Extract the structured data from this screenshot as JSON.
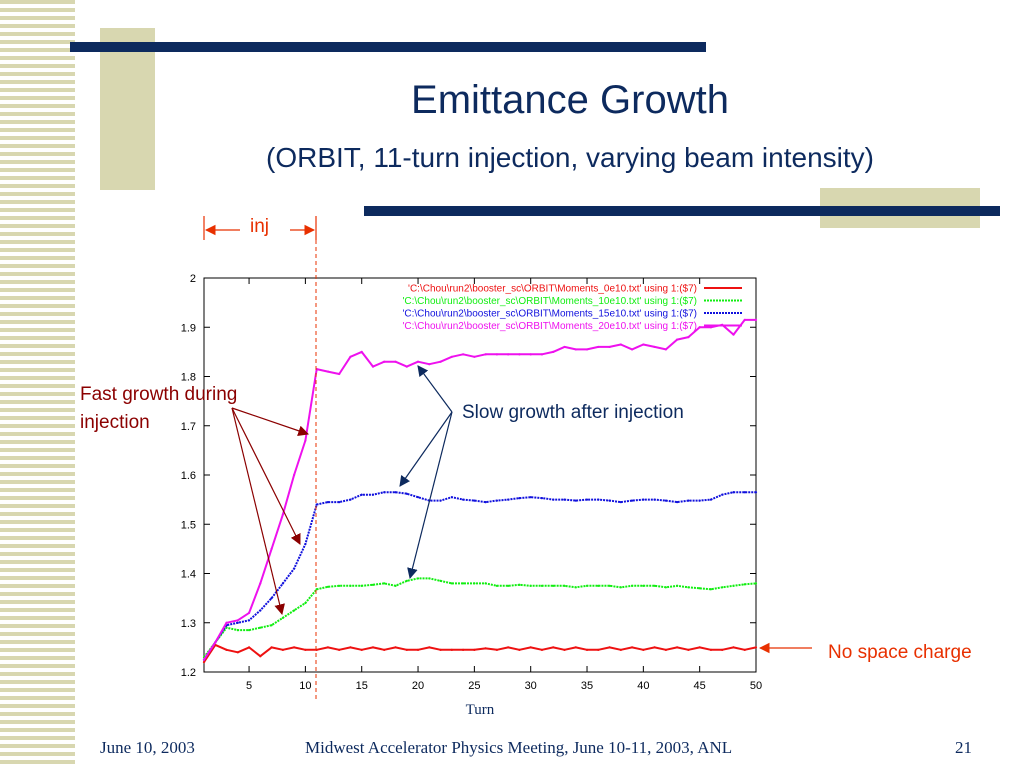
{
  "slide": {
    "title": "Emittance Growth",
    "subtitle": "(ORBIT, 11-turn injection, varying beam intensity)",
    "footer_date": "June 10, 2003",
    "footer_meeting": "Midwest Accelerator Physics Meeting, June 10-11, 2003, ANL",
    "page_number": "21",
    "colors": {
      "title": "#0d2a5e",
      "bar": "#0d2a5e",
      "accent_block": "#d8d7b0",
      "annotation_red": "#8b0000",
      "annotation_orange": "#e83000"
    }
  },
  "annotations": {
    "inj": "inj",
    "fast_growth_line1": "Fast growth during",
    "fast_growth_line2": "injection",
    "slow_growth": "Slow growth after injection",
    "no_space_charge": "No space charge"
  },
  "chart_data": {
    "type": "line",
    "xlabel": "Turn",
    "ylabel": "",
    "xlim": [
      1,
      50
    ],
    "ylim": [
      1.2,
      2.0
    ],
    "xticks": [
      "5",
      "10",
      "15",
      "20",
      "25",
      "30",
      "35",
      "40",
      "45",
      "50"
    ],
    "yticks": [
      "1.2",
      "1.3",
      "1.4",
      "1.5",
      "1.6",
      "1.7",
      "1.8",
      "1.9",
      "2"
    ],
    "legend_position": "top-right",
    "series": [
      {
        "name": "'C:\\Chou\\run2\\booster_sc\\ORBIT\\Moments_0e10.txt' using 1:($7)",
        "color": "#ee1111",
        "x": [
          1,
          2,
          3,
          4,
          5,
          6,
          7,
          8,
          9,
          10,
          11,
          12,
          13,
          14,
          15,
          16,
          17,
          18,
          19,
          20,
          21,
          22,
          23,
          24,
          25,
          26,
          27,
          28,
          29,
          30,
          31,
          32,
          33,
          34,
          35,
          36,
          37,
          38,
          39,
          40,
          41,
          42,
          43,
          44,
          45,
          46,
          47,
          48,
          49,
          50
        ],
        "y": [
          1.22,
          1.255,
          1.245,
          1.24,
          1.25,
          1.232,
          1.25,
          1.245,
          1.25,
          1.245,
          1.245,
          1.25,
          1.245,
          1.25,
          1.245,
          1.25,
          1.245,
          1.25,
          1.245,
          1.245,
          1.25,
          1.245,
          1.245,
          1.245,
          1.245,
          1.248,
          1.245,
          1.25,
          1.245,
          1.25,
          1.245,
          1.25,
          1.245,
          1.25,
          1.245,
          1.245,
          1.25,
          1.245,
          1.25,
          1.245,
          1.25,
          1.245,
          1.25,
          1.245,
          1.25,
          1.245,
          1.245,
          1.25,
          1.245,
          1.25
        ]
      },
      {
        "name": "'C:\\Chou\\run2\\booster_sc\\ORBIT\\Moments_10e10.txt' using 1:($7)",
        "color": "#11ee11",
        "x": [
          1,
          2,
          3,
          4,
          5,
          6,
          7,
          8,
          9,
          10,
          11,
          12,
          13,
          14,
          15,
          16,
          17,
          18,
          19,
          20,
          21,
          22,
          23,
          24,
          25,
          26,
          27,
          28,
          29,
          30,
          31,
          32,
          33,
          34,
          35,
          36,
          37,
          38,
          39,
          40,
          41,
          42,
          43,
          44,
          45,
          46,
          47,
          48,
          49,
          50
        ],
        "y": [
          1.23,
          1.26,
          1.29,
          1.285,
          1.285,
          1.29,
          1.295,
          1.31,
          1.325,
          1.34,
          1.368,
          1.373,
          1.375,
          1.375,
          1.375,
          1.377,
          1.38,
          1.375,
          1.385,
          1.39,
          1.39,
          1.385,
          1.38,
          1.38,
          1.38,
          1.38,
          1.375,
          1.375,
          1.377,
          1.375,
          1.375,
          1.375,
          1.375,
          1.372,
          1.375,
          1.375,
          1.375,
          1.372,
          1.375,
          1.375,
          1.375,
          1.372,
          1.375,
          1.372,
          1.37,
          1.368,
          1.372,
          1.375,
          1.378,
          1.38
        ]
      },
      {
        "name": "'C:\\Chou\\run2\\booster_sc\\ORBIT\\Moments_15e10.txt' using 1:($7)",
        "color": "#1111dd",
        "x": [
          1,
          2,
          3,
          4,
          5,
          6,
          7,
          8,
          9,
          10,
          11,
          12,
          13,
          14,
          15,
          16,
          17,
          18,
          19,
          20,
          21,
          22,
          23,
          24,
          25,
          26,
          27,
          28,
          29,
          30,
          31,
          32,
          33,
          34,
          35,
          36,
          37,
          38,
          39,
          40,
          41,
          42,
          43,
          44,
          45,
          46,
          47,
          48,
          49,
          50
        ],
        "y": [
          1.225,
          1.26,
          1.295,
          1.3,
          1.305,
          1.325,
          1.35,
          1.38,
          1.41,
          1.46,
          1.54,
          1.545,
          1.545,
          1.55,
          1.56,
          1.56,
          1.565,
          1.565,
          1.562,
          1.555,
          1.548,
          1.548,
          1.555,
          1.55,
          1.548,
          1.545,
          1.548,
          1.55,
          1.553,
          1.555,
          1.553,
          1.55,
          1.55,
          1.548,
          1.55,
          1.55,
          1.548,
          1.545,
          1.548,
          1.55,
          1.55,
          1.548,
          1.545,
          1.548,
          1.548,
          1.55,
          1.56,
          1.565,
          1.565,
          1.565
        ]
      },
      {
        "name": "'C:\\Chou\\run2\\booster_sc\\ORBIT\\Moments_20e10.txt' using 1:($7)",
        "color": "#ee11ee",
        "x": [
          1,
          2,
          3,
          4,
          5,
          6,
          7,
          8,
          9,
          10,
          11,
          12,
          13,
          14,
          15,
          16,
          17,
          18,
          19,
          20,
          21,
          22,
          23,
          24,
          25,
          26,
          27,
          28,
          29,
          30,
          31,
          32,
          33,
          34,
          35,
          36,
          37,
          38,
          39,
          40,
          41,
          42,
          43,
          44,
          45,
          46,
          47,
          48,
          49,
          50
        ],
        "y": [
          1.225,
          1.26,
          1.3,
          1.305,
          1.32,
          1.38,
          1.45,
          1.52,
          1.6,
          1.67,
          1.815,
          1.81,
          1.805,
          1.84,
          1.85,
          1.82,
          1.83,
          1.83,
          1.82,
          1.83,
          1.825,
          1.83,
          1.84,
          1.845,
          1.84,
          1.845,
          1.845,
          1.845,
          1.845,
          1.845,
          1.845,
          1.85,
          1.86,
          1.855,
          1.855,
          1.86,
          1.86,
          1.865,
          1.855,
          1.865,
          1.86,
          1.855,
          1.875,
          1.88,
          1.9,
          1.9,
          1.905,
          1.885,
          1.915,
          1.915
        ]
      }
    ]
  }
}
